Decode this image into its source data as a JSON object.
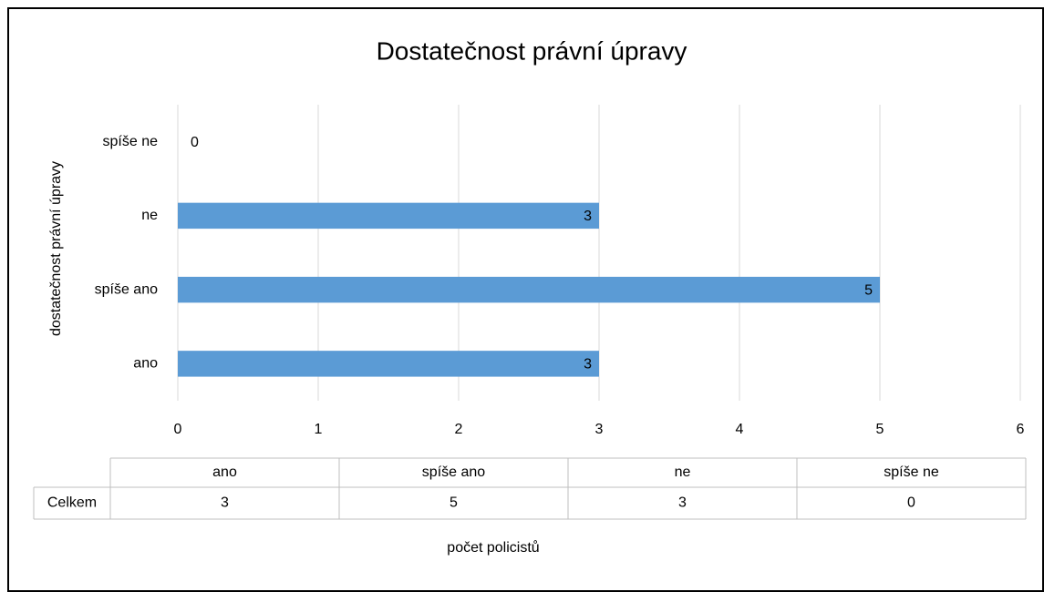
{
  "chart_data": {
    "type": "bar",
    "orientation": "horizontal",
    "title": "Dostatečnost právní úpravy",
    "categories": [
      "ano",
      "spíše ano",
      "ne",
      "spíše ne"
    ],
    "values": [
      3,
      5,
      3,
      0
    ],
    "color": "#5b9bd5",
    "xlim": [
      0,
      6
    ],
    "xticks": [
      0,
      1,
      2,
      3,
      4,
      5,
      6
    ],
    "grid": true,
    "y_axis_label": "dostatečnost právní úpravy",
    "x_axis_label": "počet policistů",
    "table_row_label": "Celkem"
  }
}
